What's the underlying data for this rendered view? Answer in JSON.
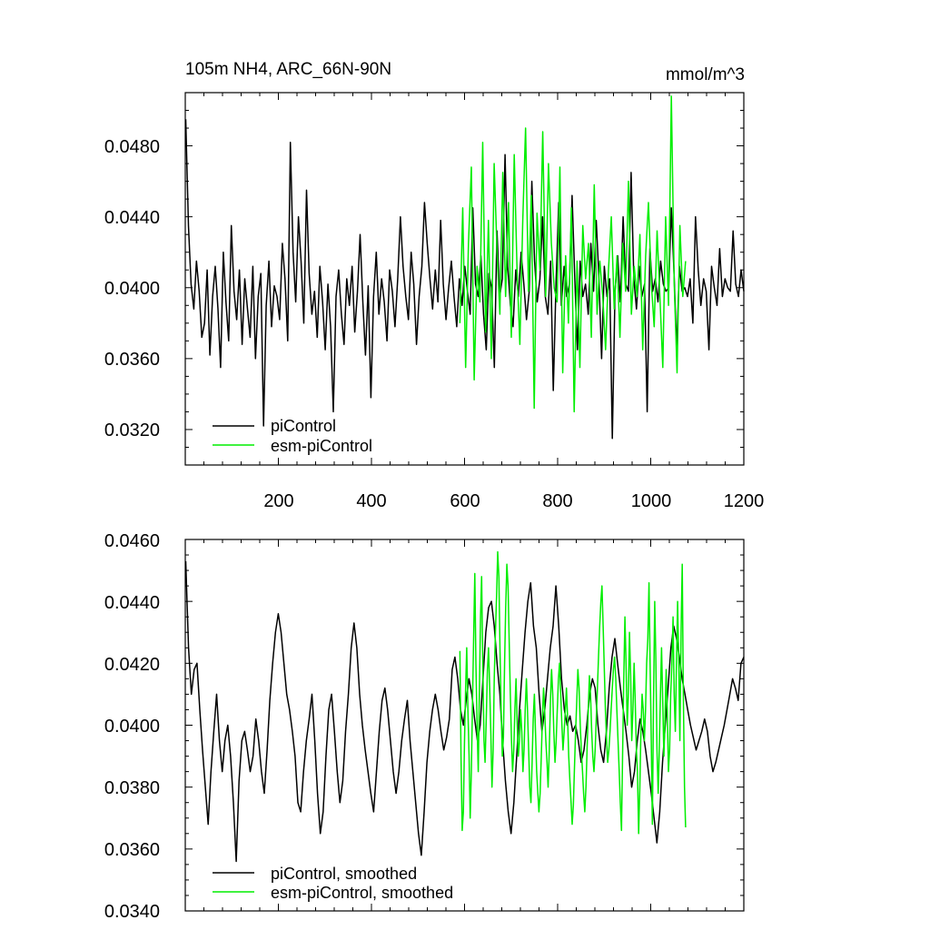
{
  "chart_data": [
    {
      "type": "line",
      "title": "105m NH4, ARC_66N-90N",
      "units": "mmol/m^3",
      "xlim": [
        0,
        1200
      ],
      "ylim": [
        0.03,
        0.051
      ],
      "x_ticks": [
        "200",
        "400",
        "600",
        "800",
        "1000",
        "1200"
      ],
      "y_ticks": [
        "0.0320",
        "0.0360",
        "0.0400",
        "0.0440",
        "0.0480"
      ],
      "grid": false,
      "legend_position": "bottom-left",
      "series": [
        {
          "name": "piControl",
          "color": "#000000",
          "x_range": [
            1,
            1200
          ],
          "values": [
            0.0495,
            0.0435,
            0.0402,
            0.0388,
            0.0415,
            0.0398,
            0.0372,
            0.038,
            0.041,
            0.0362,
            0.0395,
            0.0412,
            0.0388,
            0.0355,
            0.042,
            0.0392,
            0.037,
            0.0435,
            0.0398,
            0.0382,
            0.041,
            0.0368,
            0.0405,
            0.0388,
            0.0372,
            0.0412,
            0.036,
            0.0395,
            0.0408,
            0.0322,
            0.039,
            0.0415,
            0.0378,
            0.0401,
            0.0395,
            0.0382,
            0.0425,
            0.0405,
            0.037,
            0.0482,
            0.042,
            0.0392,
            0.044,
            0.0415,
            0.038,
            0.0455,
            0.0408,
            0.0385,
            0.0398,
            0.0372,
            0.0412,
            0.0392,
            0.0365,
            0.0402,
            0.0378,
            0.033,
            0.0395,
            0.041,
            0.0385,
            0.0368,
            0.0405,
            0.039,
            0.0412,
            0.0375,
            0.0398,
            0.043,
            0.0392,
            0.0362,
            0.0401,
            0.0338,
            0.0395,
            0.042,
            0.0385,
            0.0405,
            0.0392,
            0.037,
            0.041,
            0.0398,
            0.0378,
            0.0405,
            0.044,
            0.0412,
            0.0395,
            0.0382,
            0.042,
            0.0402,
            0.0368,
            0.0395,
            0.0412,
            0.0448,
            0.0425,
            0.0405,
            0.0388,
            0.041,
            0.0392,
            0.0438,
            0.0402,
            0.0382,
            0.04,
            0.0415,
            0.0395,
            0.0378,
            0.0405,
            0.039,
            0.0412,
            0.0398,
            0.0385,
            0.0445,
            0.0402,
            0.0395,
            0.0418,
            0.0385,
            0.0365,
            0.0408,
            0.04,
            0.0355,
            0.0432,
            0.0395,
            0.0405,
            0.0475,
            0.0412,
            0.039,
            0.0378,
            0.041,
            0.0395,
            0.042,
            0.0402,
            0.0382,
            0.0398,
            0.046,
            0.0415,
            0.0392,
            0.0405,
            0.044,
            0.0395,
            0.0385,
            0.0415,
            0.0342,
            0.0402,
            0.0448,
            0.039,
            0.0412,
            0.0395,
            0.0402,
            0.0452,
            0.0405,
            0.0365,
            0.0415,
            0.0395,
            0.0402,
            0.0385,
            0.0425,
            0.0398,
            0.0438,
            0.0405,
            0.036,
            0.0412,
            0.0395,
            0.0405,
            0.0315,
            0.0398,
            0.0418,
            0.0392,
            0.044,
            0.0402,
            0.0398,
            0.0465,
            0.0405,
            0.0388,
            0.0412,
            0.0395,
            0.0402,
            0.033,
            0.0422,
            0.0398,
            0.0405,
            0.0392,
            0.0415,
            0.0402,
            0.0398,
            0.04,
            0.0445,
            0.0408,
            0.0365,
            0.0412,
            0.0398,
            0.04,
            0.0395,
            0.0405,
            0.038,
            0.044,
            0.041,
            0.039,
            0.0405,
            0.0398,
            0.0365,
            0.0412,
            0.04,
            0.039,
            0.0422,
            0.0395,
            0.0405,
            0.04,
            0.0398,
            0.0432,
            0.0402,
            0.0395,
            0.041,
            0.0398
          ]
        },
        {
          "name": "esm-piControl",
          "color": "#00ee00",
          "x_range": [
            590,
            1075
          ],
          "values": [
            0.038,
            0.0445,
            0.0355,
            0.0425,
            0.0468,
            0.0348,
            0.0412,
            0.0392,
            0.0482,
            0.0375,
            0.0438,
            0.036,
            0.047,
            0.042,
            0.0385,
            0.0465,
            0.0395,
            0.0448,
            0.0372,
            0.0475,
            0.041,
            0.0368,
            0.0438,
            0.049,
            0.0398,
            0.0452,
            0.0332,
            0.0442,
            0.041,
            0.0488,
            0.0395,
            0.047,
            0.0425,
            0.04,
            0.0392,
            0.0468,
            0.0352,
            0.0418,
            0.038,
            0.0445,
            0.033,
            0.0415,
            0.0355,
            0.0435,
            0.0405,
            0.0425,
            0.0372,
            0.0458,
            0.0385,
            0.0415,
            0.0395,
            0.0365,
            0.041,
            0.044,
            0.0388,
            0.0418,
            0.0372,
            0.0425,
            0.0398,
            0.046,
            0.0385,
            0.0412,
            0.0395,
            0.043,
            0.0365,
            0.0418,
            0.0448,
            0.0402,
            0.0378,
            0.0432,
            0.0395,
            0.0355,
            0.044,
            0.039,
            0.0508,
            0.0402,
            0.0352,
            0.0435,
            0.0395,
            0.0415
          ]
        }
      ]
    },
    {
      "type": "line",
      "xlim": [
        0,
        1200
      ],
      "ylim": [
        0.034,
        0.046
      ],
      "y_ticks": [
        "0.0340",
        "0.0360",
        "0.0380",
        "0.0400",
        "0.0420",
        "0.0440",
        "0.0460"
      ],
      "grid": false,
      "legend_position": "bottom-left",
      "series": [
        {
          "name": "piControl, smoothed",
          "color": "#000000",
          "x_range": [
            1,
            1200
          ],
          "values": [
            0.0453,
            0.0425,
            0.041,
            0.0418,
            0.042,
            0.0405,
            0.0392,
            0.038,
            0.0368,
            0.0385,
            0.0398,
            0.041,
            0.0395,
            0.0385,
            0.0395,
            0.04,
            0.039,
            0.0375,
            0.0356,
            0.0382,
            0.0395,
            0.0398,
            0.0392,
            0.0385,
            0.039,
            0.0402,
            0.0395,
            0.0385,
            0.0378,
            0.0392,
            0.0408,
            0.042,
            0.043,
            0.0436,
            0.043,
            0.042,
            0.041,
            0.0405,
            0.0398,
            0.039,
            0.0375,
            0.0372,
            0.0385,
            0.0395,
            0.0402,
            0.041,
            0.0395,
            0.0378,
            0.0365,
            0.0372,
            0.039,
            0.0405,
            0.041,
            0.0398,
            0.0385,
            0.0375,
            0.0382,
            0.0398,
            0.041,
            0.0425,
            0.0433,
            0.0425,
            0.041,
            0.04,
            0.0392,
            0.0385,
            0.0378,
            0.0372,
            0.0385,
            0.0398,
            0.0408,
            0.0412,
            0.0405,
            0.0395,
            0.0385,
            0.0378,
            0.0385,
            0.0395,
            0.0402,
            0.0408,
            0.0395,
            0.0385,
            0.0375,
            0.0365,
            0.0358,
            0.0372,
            0.0388,
            0.0398,
            0.0405,
            0.041,
            0.0405,
            0.0398,
            0.0392,
            0.0396,
            0.0402,
            0.0418,
            0.0422,
            0.0415,
            0.0405,
            0.04,
            0.0408,
            0.0415,
            0.041,
            0.0402,
            0.0395,
            0.04,
            0.0415,
            0.043,
            0.0438,
            0.044,
            0.0432,
            0.042,
            0.041,
            0.0395,
            0.0382,
            0.0372,
            0.0365,
            0.0375,
            0.039,
            0.0405,
            0.0418,
            0.043,
            0.044,
            0.0446,
            0.0432,
            0.0425,
            0.041,
            0.0398,
            0.0405,
            0.0415,
            0.0425,
            0.0432,
            0.0445,
            0.0432,
            0.0415,
            0.0405,
            0.04,
            0.0403,
            0.0398,
            0.04,
            0.0395,
            0.0388,
            0.0392,
            0.04,
            0.041,
            0.0415,
            0.0412,
            0.04,
            0.0392,
            0.0388,
            0.0398,
            0.0412,
            0.0422,
            0.0428,
            0.042,
            0.0412,
            0.0405,
            0.0398,
            0.039,
            0.038,
            0.0385,
            0.0395,
            0.0402,
            0.0398,
            0.0392,
            0.0385,
            0.0378,
            0.037,
            0.0362,
            0.0372,
            0.0388,
            0.04,
            0.0412,
            0.0425,
            0.0432,
            0.0428,
            0.0422,
            0.0415,
            0.041,
            0.0405,
            0.04,
            0.0396,
            0.0392,
            0.0395,
            0.0398,
            0.0402,
            0.0398,
            0.039,
            0.0385,
            0.0388,
            0.0392,
            0.0396,
            0.04,
            0.0405,
            0.041,
            0.0415,
            0.0412,
            0.0408,
            0.042,
            0.0422
          ]
        },
        {
          "name": "esm-piControl, smoothed",
          "color": "#00ee00",
          "x_range": [
            590,
            1075
          ],
          "values": [
            0.0424,
            0.039,
            0.0366,
            0.0372,
            0.0394,
            0.0412,
            0.0425,
            0.0405,
            0.039,
            0.037,
            0.0385,
            0.0408,
            0.0428,
            0.0449,
            0.042,
            0.04,
            0.0385,
            0.041,
            0.0435,
            0.0448,
            0.042,
            0.0395,
            0.0388,
            0.0402,
            0.0418,
            0.0425,
            0.0412,
            0.0398,
            0.038,
            0.0392,
            0.0415,
            0.043,
            0.0442,
            0.0456,
            0.0448,
            0.0425,
            0.0405,
            0.039,
            0.0396,
            0.042,
            0.0438,
            0.0452,
            0.0445,
            0.0428,
            0.041,
            0.0395,
            0.0385,
            0.0392,
            0.0405,
            0.0415,
            0.04,
            0.039,
            0.0395,
            0.0405,
            0.0398,
            0.0385,
            0.0392,
            0.0405,
            0.0415,
            0.0405,
            0.0392,
            0.038,
            0.0375,
            0.0388,
            0.0402,
            0.041,
            0.0398,
            0.0385,
            0.0378,
            0.0372,
            0.0378,
            0.039,
            0.0402,
            0.0412,
            0.0405,
            0.0395,
            0.0388,
            0.038,
            0.0392,
            0.0408,
            0.0418,
            0.041,
            0.0398,
            0.0388,
            0.0395,
            0.0405,
            0.0415,
            0.042,
            0.041,
            0.04,
            0.0392,
            0.0398,
            0.0405,
            0.0412,
            0.0402,
            0.039,
            0.0382,
            0.0375,
            0.0368,
            0.0374,
            0.0386,
            0.0398,
            0.0408,
            0.0418,
            0.0412,
            0.04,
            0.0392,
            0.0385,
            0.0378,
            0.0372,
            0.038,
            0.0392,
            0.0405,
            0.0416,
            0.041,
            0.0398,
            0.039,
            0.0385,
            0.0392,
            0.0402,
            0.0412,
            0.0422,
            0.0432,
            0.044,
            0.0445,
            0.0432,
            0.0418,
            0.0405,
            0.0395,
            0.0388,
            0.0392,
            0.0398,
            0.0405,
            0.0412,
            0.0418,
            0.0422,
            0.0415,
            0.0405,
            0.0395,
            0.0385,
            0.0375,
            0.0366,
            0.039,
            0.0415,
            0.0435,
            0.042,
            0.04,
            0.041,
            0.043,
            0.0416,
            0.0395,
            0.0405,
            0.042,
            0.0408,
            0.0392,
            0.0385,
            0.0365,
            0.038,
            0.0398,
            0.041,
            0.0405,
            0.0395,
            0.0405,
            0.042,
            0.0428,
            0.0446,
            0.042,
            0.0395,
            0.0368,
            0.0408,
            0.044,
            0.0422,
            0.0392,
            0.0378,
            0.0392,
            0.041,
            0.0425,
            0.0408,
            0.039,
            0.0402,
            0.0418,
            0.0405,
            0.0385,
            0.0392,
            0.041,
            0.042,
            0.0435,
            0.041,
            0.0398,
            0.042,
            0.044,
            0.042,
            0.0395,
            0.043,
            0.0452,
            0.041,
            0.038,
            0.0367
          ]
        }
      ]
    }
  ],
  "panels": [
    {
      "title_left": "105m NH4, ARC_66N-90N",
      "title_right": "mmol/m^3",
      "x_tick_labels": [
        "200",
        "400",
        "600",
        "800",
        "1000",
        "1200"
      ],
      "y_tick_labels": [
        "0.0320",
        "0.0360",
        "0.0400",
        "0.0440",
        "0.0480"
      ],
      "legend": [
        "piControl",
        "esm-piControl"
      ]
    },
    {
      "y_tick_labels": [
        "0.0340",
        "0.0360",
        "0.0380",
        "0.0400",
        "0.0420",
        "0.0440",
        "0.0460"
      ],
      "legend": [
        "piControl, smoothed",
        "esm-piControl, smoothed"
      ]
    }
  ]
}
